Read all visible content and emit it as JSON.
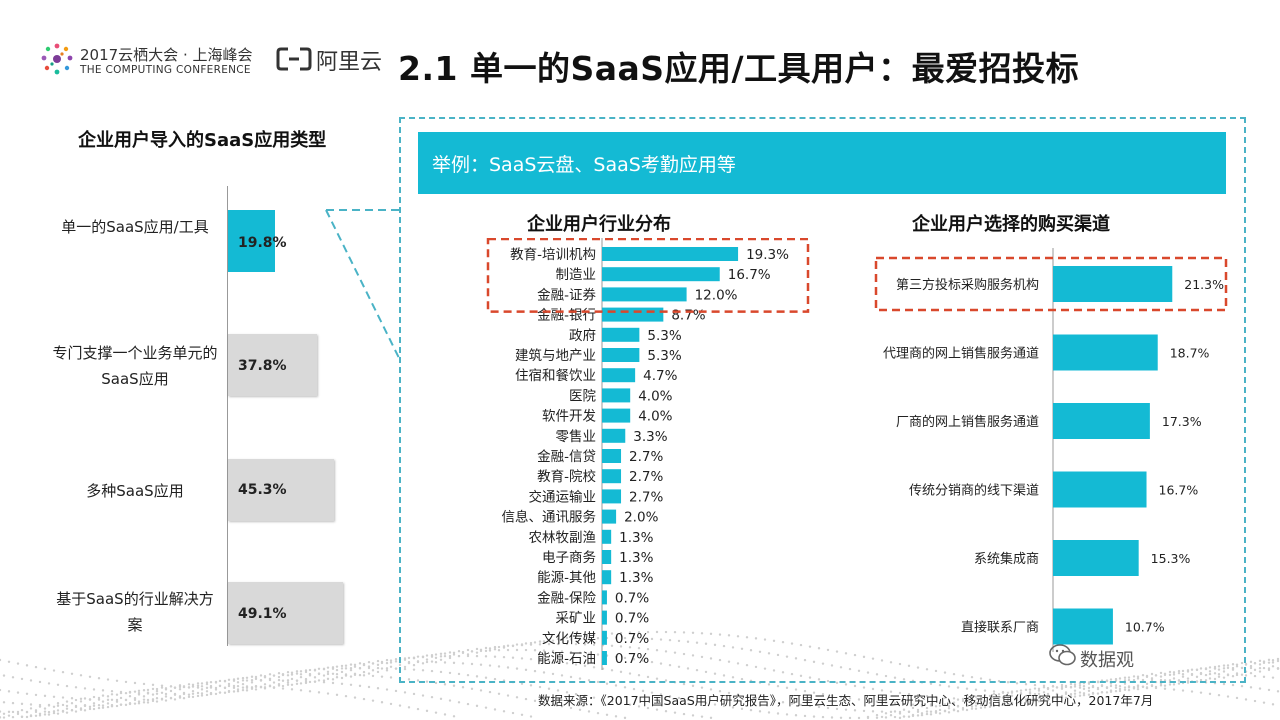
{
  "header": {
    "conference_title": "2017云栖大会 · 上海峰会",
    "conference_subtitle": "THE COMPUTING CONFERENCE",
    "brand": "阿里云",
    "page_title": "2.1 单一的SaaS应用/工具用户：最爱招投标"
  },
  "left_panel": {
    "title": "企业用户导入的SaaS应用类型",
    "rows": [
      {
        "label": "单一的SaaS应用/工具",
        "value": "19.8%"
      },
      {
        "label": "专门支撑一个业务单元的SaaS应用",
        "value": "37.8%"
      },
      {
        "label": "多种SaaS应用",
        "value": "45.3%"
      },
      {
        "label": "基于SaaS的行业解决方案",
        "value": "49.1%"
      }
    ]
  },
  "example_banner": "举例：SaaS云盘、SaaS考勤应用等",
  "colors": {
    "accent": "#14bad4",
    "grey_bar": "#d9d9d9",
    "highlight": "#d9482c"
  },
  "chart_data": [
    {
      "type": "bar",
      "orientation": "horizontal",
      "title": "企业用户导入的SaaS应用类型",
      "categories": [
        "单一的SaaS应用/工具",
        "专门支撑一个业务单元的SaaS应用",
        "多种SaaS应用",
        "基于SaaS的行业解决方案"
      ],
      "values": [
        19.8,
        37.8,
        45.3,
        49.1
      ],
      "unit": "%",
      "highlighted_index": 0
    },
    {
      "type": "bar",
      "orientation": "horizontal",
      "title": "企业用户行业分布",
      "categories": [
        "教育-培训机构",
        "制造业",
        "金融-证券",
        "金融-银行",
        "政府",
        "建筑与地产业",
        "住宿和餐饮业",
        "医院",
        "软件开发",
        "零售业",
        "金融-信贷",
        "教育-院校",
        "交通运输业",
        "信息、通讯服务",
        "农林牧副渔",
        "电子商务",
        "能源-其他",
        "金融-保险",
        "采矿业",
        "文化传媒",
        "能源-石油"
      ],
      "values": [
        19.3,
        16.7,
        12.0,
        8.7,
        5.3,
        5.3,
        4.7,
        4.0,
        4.0,
        3.3,
        2.7,
        2.7,
        2.7,
        2.0,
        1.3,
        1.3,
        1.3,
        0.7,
        0.7,
        0.7,
        0.7
      ],
      "labels": [
        "19.3%",
        "16.7%",
        "12.0%",
        "8.7%",
        "5.3%",
        "5.3%",
        "4.7%",
        "4.0%",
        "4.0%",
        "3.3%",
        "2.7%",
        "2.7%",
        "2.7%",
        "2.0%",
        "1.3%",
        "1.3%",
        "1.3%",
        "0.7%",
        "0.7%",
        "0.7%",
        "0.7%"
      ],
      "unit": "%",
      "highlighted_range": [
        0,
        2
      ]
    },
    {
      "type": "bar",
      "orientation": "horizontal",
      "title": "企业用户选择的购买渠道",
      "categories": [
        "第三方投标采购服务机构",
        "代理商的网上销售服务通道",
        "厂商的网上销售服务通道",
        "传统分销商的线下渠道",
        "系统集成商",
        "直接联系厂商"
      ],
      "values": [
        21.3,
        18.7,
        17.3,
        16.7,
        15.3,
        10.7
      ],
      "labels": [
        "21.3%",
        "18.7%",
        "17.3%",
        "16.7%",
        "15.3%",
        "10.7%"
      ],
      "unit": "%",
      "highlighted_index": 0
    }
  ],
  "source": "数据来源：《2017中国SaaS用户研究报告》，阿里云生态、阿里云研究中心、移动信息化研究中心，2017年7月",
  "watermark": "数据观"
}
